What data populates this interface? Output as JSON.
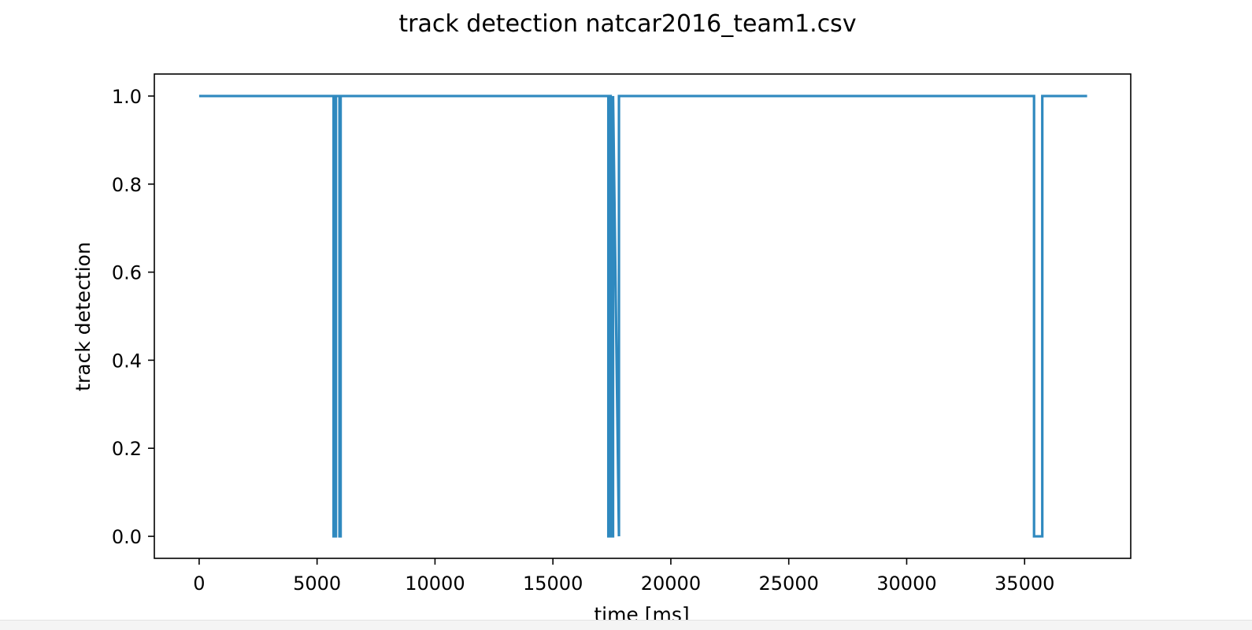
{
  "chart_data": {
    "type": "line",
    "title": "track detection natcar2016_team1.csv",
    "xlabel": "time [ms]",
    "ylabel": "track detection",
    "xlim": [
      -1900,
      39500
    ],
    "ylim": [
      -0.05,
      1.05
    ],
    "xticks": [
      0,
      5000,
      10000,
      15000,
      20000,
      25000,
      30000,
      35000
    ],
    "xtick_labels": [
      "0",
      "5000",
      "10000",
      "15000",
      "20000",
      "25000",
      "30000",
      "35000"
    ],
    "yticks": [
      0.0,
      0.2,
      0.4,
      0.6,
      0.8,
      1.0
    ],
    "ytick_labels": [
      "0.0",
      "0.2",
      "0.4",
      "0.6",
      "0.8",
      "1.0"
    ],
    "grid": false,
    "legend": "none",
    "series": [
      {
        "color": "#2f89bf",
        "x": [
          0,
          5700,
          5700,
          5800,
          5800,
          5950,
          5950,
          6000,
          6000,
          17350,
          17350,
          17400,
          17400,
          17450,
          17450,
          17550,
          17550,
          17800,
          17800,
          35400,
          35400,
          35750,
          35750,
          37650
        ],
        "y": [
          1,
          1,
          0,
          0,
          1,
          1,
          0,
          0,
          1,
          1,
          0,
          0,
          1,
          1,
          0,
          0,
          1,
          0,
          1,
          1,
          0,
          0,
          1,
          1
        ]
      }
    ]
  }
}
